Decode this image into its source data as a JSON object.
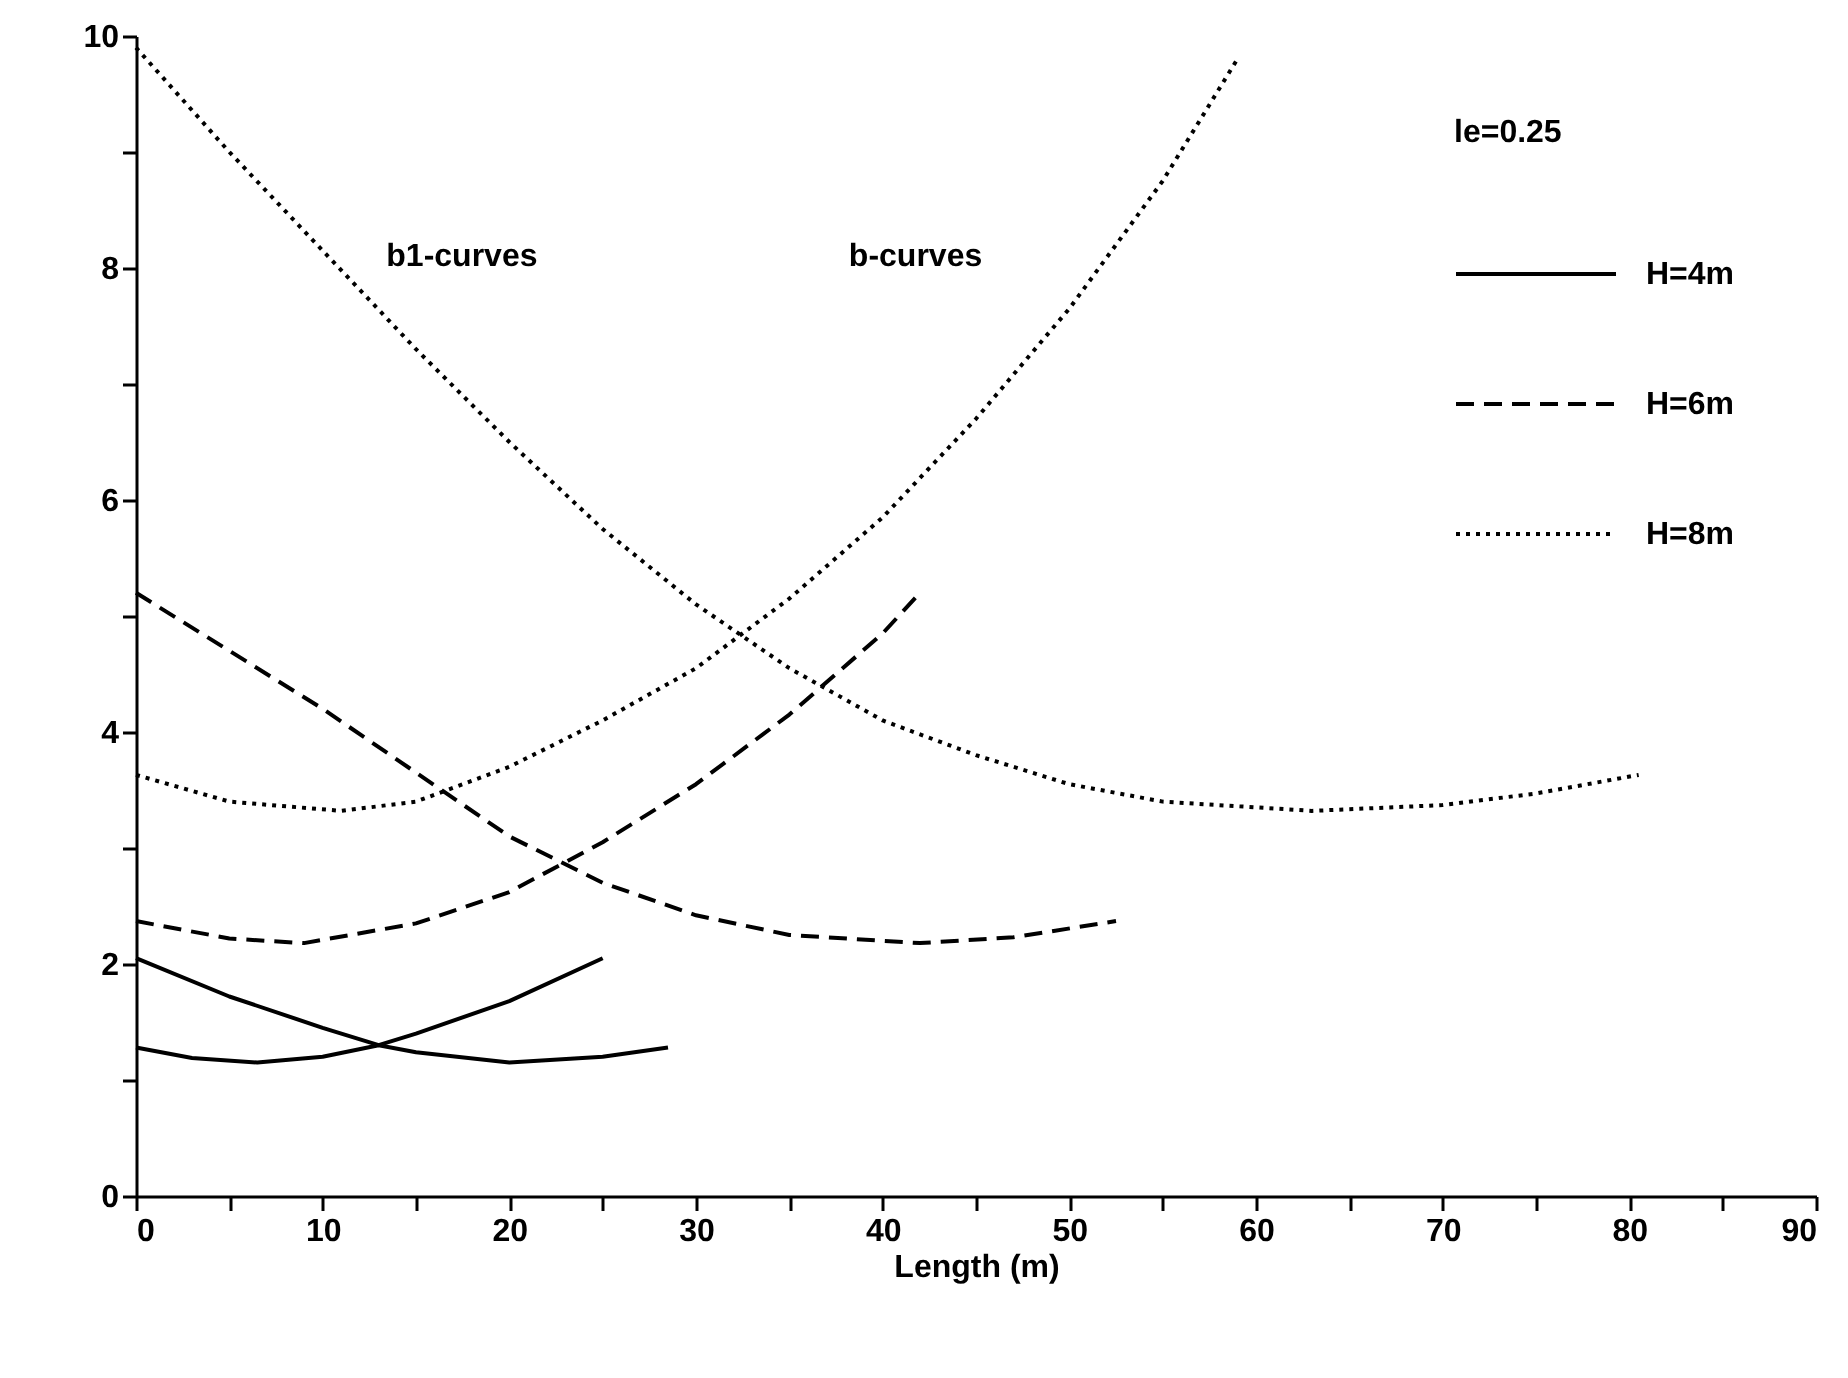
{
  "chart_data": {
    "type": "line",
    "xlabel": "Length (m)",
    "legend_title": "le=0.25",
    "legend": "top right",
    "grid": false,
    "marker": "none",
    "xlim": [
      0,
      90
    ],
    "xticks": [
      0,
      {
        "value": 5,
        "label": null
      },
      10,
      {
        "value": 15,
        "label": null
      },
      20,
      {
        "value": 25,
        "label": null
      },
      30,
      {
        "value": 35,
        "label": null
      },
      40,
      {
        "value": 45,
        "label": null
      },
      50,
      {
        "value": 55,
        "label": null
      },
      60,
      {
        "value": 65,
        "label": null
      },
      70,
      {
        "value": 75,
        "label": null
      },
      80,
      {
        "value": 85,
        "label": null
      },
      90
    ],
    "ylim": [
      0,
      10
    ],
    "yticks": [
      0,
      {
        "value": 1,
        "label": null
      },
      2,
      {
        "value": 3,
        "label": null
      },
      4,
      {
        "value": 5,
        "label": null
      },
      6,
      {
        "value": 7,
        "label": null
      },
      8,
      {
        "value": 9,
        "label": null
      },
      10
    ],
    "annotations": [
      "b1-curves",
      "b-curves"
    ],
    "series": [
      {
        "name": "H=4m",
        "color": "#000000",
        "line_style": "solid",
        "x": [
          0,
          5,
          10,
          13,
          15,
          20,
          25,
          28.5
        ],
        "values": [
          2.05,
          1.72,
          1.45,
          1.3,
          1.24,
          1.15,
          1.2,
          1.28
        ]
      },
      {
        "color": "#000000",
        "line_style": "solid",
        "x": [
          0,
          3,
          6.5,
          10,
          13,
          15,
          20,
          25
        ],
        "values": [
          1.28,
          1.19,
          1.15,
          1.2,
          1.3,
          1.4,
          1.68,
          2.05
        ]
      },
      {
        "name": "H=6m",
        "color": "#000000",
        "line_style": "dashed",
        "x": [
          0,
          5,
          10,
          15,
          20,
          25,
          30,
          35,
          42,
          47,
          52.5
        ],
        "values": [
          5.2,
          4.7,
          4.2,
          3.65,
          3.1,
          2.7,
          2.42,
          2.25,
          2.18,
          2.23,
          2.37
        ]
      },
      {
        "color": "#000000",
        "line_style": "dashed",
        "x": [
          0,
          5,
          9,
          15,
          20,
          25,
          30,
          35,
          40,
          42
        ],
        "values": [
          2.37,
          2.22,
          2.18,
          2.35,
          2.62,
          3.05,
          3.55,
          4.15,
          4.85,
          5.2
        ]
      },
      {
        "name": "H=8m",
        "color": "#000000",
        "line_style": "dotted",
        "x": [
          0,
          5,
          10,
          15,
          20,
          25,
          30,
          35,
          40,
          45,
          50,
          55,
          63,
          70,
          75,
          80.5
        ],
        "values": [
          9.9,
          9.0,
          8.15,
          7.3,
          6.5,
          5.75,
          5.1,
          4.55,
          4.1,
          3.8,
          3.55,
          3.4,
          3.32,
          3.37,
          3.47,
          3.63
        ]
      },
      {
        "color": "#000000",
        "line_style": "dotted",
        "x": [
          0,
          5,
          11,
          15,
          20,
          25,
          30,
          35,
          40,
          45,
          50,
          55,
          59
        ],
        "values": [
          3.63,
          3.4,
          3.32,
          3.4,
          3.7,
          4.1,
          4.55,
          5.15,
          5.85,
          6.7,
          7.65,
          8.75,
          9.8
        ]
      }
    ]
  }
}
